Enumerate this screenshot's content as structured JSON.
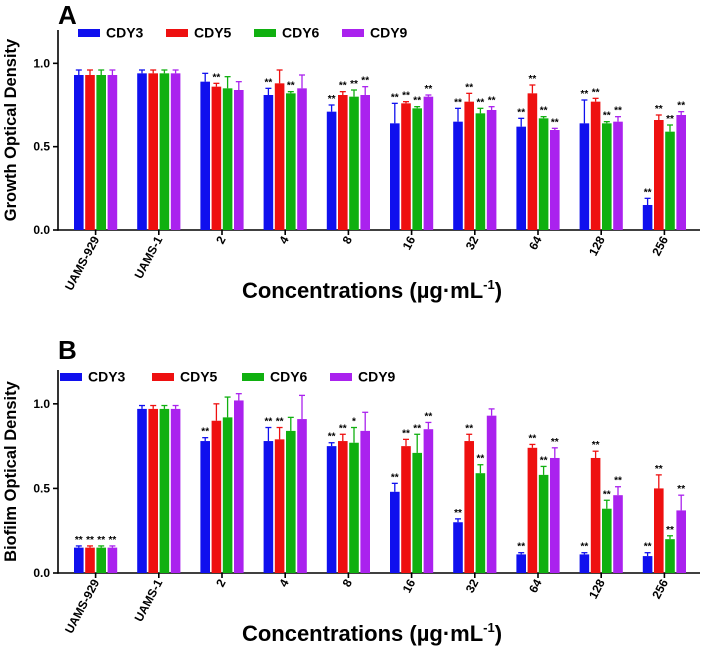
{
  "chart_data": [
    {
      "type": "bar",
      "panel": "A",
      "ylabel": "Growth Optical Density",
      "xlabel": "Concentrations (µg·mL",
      "xlabel_sup": "-1",
      "xlabel_close": ")",
      "ylim": [
        0,
        1.2
      ],
      "yticks": [
        "0.0",
        "0.5",
        "1.0"
      ],
      "categories": [
        "UAMS-929",
        "UAMS-1",
        "2",
        "4",
        "8",
        "16",
        "32",
        "64",
        "128",
        "256"
      ],
      "legend_position": "top",
      "series": [
        {
          "name": "CDY3",
          "color": "#1010ee",
          "values": [
            0.93,
            0.94,
            0.89,
            0.81,
            0.71,
            0.64,
            0.65,
            0.62,
            0.64,
            0.15
          ],
          "errors": [
            0.03,
            0.02,
            0.05,
            0.04,
            0.04,
            0.12,
            0.08,
            0.05,
            0.14,
            0.04
          ],
          "sig": [
            "",
            "",
            "",
            "**",
            "**",
            "**",
            "**",
            "**",
            "**",
            "**"
          ]
        },
        {
          "name": "CDY5",
          "color": "#ee1010",
          "values": [
            0.93,
            0.94,
            0.86,
            0.88,
            0.81,
            0.76,
            0.77,
            0.82,
            0.77,
            0.66
          ],
          "errors": [
            0.03,
            0.02,
            0.02,
            0.08,
            0.02,
            0.01,
            0.05,
            0.05,
            0.02,
            0.03
          ],
          "sig": [
            "",
            "",
            "**",
            "",
            "**",
            "**",
            "**",
            "**",
            "**",
            "**"
          ]
        },
        {
          "name": "CDY6",
          "color": "#10b010",
          "values": [
            0.93,
            0.94,
            0.85,
            0.82,
            0.8,
            0.73,
            0.7,
            0.67,
            0.64,
            0.59
          ],
          "errors": [
            0.03,
            0.02,
            0.07,
            0.01,
            0.04,
            0.01,
            0.03,
            0.01,
            0.01,
            0.04
          ],
          "sig": [
            "",
            "",
            "",
            "**",
            "**",
            "**",
            "**",
            "**",
            "**",
            "**"
          ]
        },
        {
          "name": "CDY9",
          "color": "#aa22ee",
          "values": [
            0.93,
            0.94,
            0.84,
            0.85,
            0.81,
            0.8,
            0.72,
            0.6,
            0.65,
            0.69
          ],
          "errors": [
            0.03,
            0.02,
            0.05,
            0.08,
            0.05,
            0.01,
            0.02,
            0.01,
            0.03,
            0.02
          ],
          "sig": [
            "",
            "",
            "",
            "",
            "**",
            "**",
            "**",
            "**",
            "**",
            "**"
          ]
        }
      ]
    },
    {
      "type": "bar",
      "panel": "B",
      "ylabel": "Biofilm Optical Density",
      "xlabel": "Concentrations (µg·mL",
      "xlabel_sup": "-1",
      "xlabel_close": ")",
      "ylim": [
        0,
        1.2
      ],
      "yticks": [
        "0.0",
        "0.5",
        "1.0"
      ],
      "categories": [
        "UAMS-929",
        "UAMS-1",
        "2",
        "4",
        "8",
        "16",
        "32",
        "64",
        "128",
        "256"
      ],
      "legend_position": "top",
      "series": [
        {
          "name": "CDY3",
          "color": "#1010ee",
          "values": [
            0.15,
            0.97,
            0.78,
            0.78,
            0.75,
            0.48,
            0.3,
            0.11,
            0.11,
            0.1
          ],
          "errors": [
            0.01,
            0.02,
            0.02,
            0.08,
            0.02,
            0.05,
            0.02,
            0.01,
            0.01,
            0.02
          ],
          "sig": [
            "**",
            "",
            "**",
            "**",
            "**",
            "**",
            "**",
            "**",
            "**",
            "**"
          ]
        },
        {
          "name": "CDY5",
          "color": "#ee1010",
          "values": [
            0.15,
            0.97,
            0.9,
            0.79,
            0.78,
            0.75,
            0.78,
            0.74,
            0.68,
            0.5
          ],
          "errors": [
            0.01,
            0.02,
            0.1,
            0.07,
            0.04,
            0.04,
            0.04,
            0.02,
            0.04,
            0.08
          ],
          "sig": [
            "**",
            "",
            "",
            "**",
            "**",
            "**",
            "**",
            "**",
            "**",
            "**"
          ]
        },
        {
          "name": "CDY6",
          "color": "#10b010",
          "values": [
            0.15,
            0.97,
            0.92,
            0.84,
            0.77,
            0.71,
            0.59,
            0.58,
            0.38,
            0.2
          ],
          "errors": [
            0.01,
            0.02,
            0.12,
            0.08,
            0.09,
            0.11,
            0.05,
            0.05,
            0.05,
            0.02
          ],
          "sig": [
            "**",
            "",
            "",
            "",
            "*",
            "**",
            "**",
            "**",
            "**",
            "**"
          ]
        },
        {
          "name": "CDY9",
          "color": "#aa22ee",
          "values": [
            0.15,
            0.97,
            1.02,
            0.91,
            0.84,
            0.85,
            0.93,
            0.68,
            0.46,
            0.37
          ],
          "errors": [
            0.01,
            0.02,
            0.04,
            0.14,
            0.11,
            0.04,
            0.04,
            0.06,
            0.05,
            0.09
          ],
          "sig": [
            "**",
            "",
            "",
            "",
            "",
            "**",
            "",
            "**",
            "**",
            "**"
          ]
        }
      ]
    }
  ]
}
